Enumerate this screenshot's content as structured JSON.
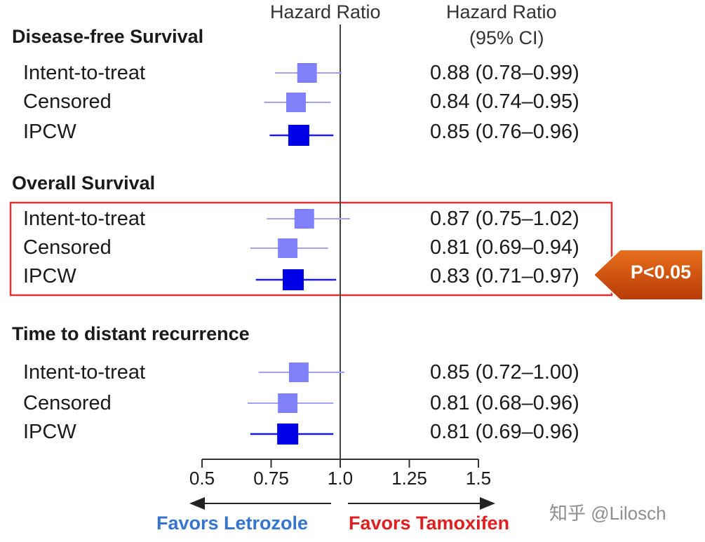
{
  "chart_data": {
    "type": "forest",
    "header": {
      "hr_column": "Hazard Ratio",
      "ci_column": [
        "Hazard Ratio",
        "(95% CI)"
      ]
    },
    "x_axis": {
      "min": 0.5,
      "max": 1.5,
      "ticks": [
        "0.5",
        "0.75",
        "1.0",
        "1.25",
        "1.5"
      ],
      "reference_line": 1.0
    },
    "groups": [
      {
        "title": "Disease-free Survival",
        "rows": [
          {
            "label": "Intent-to-treat",
            "hr": 0.88,
            "low": 0.78,
            "high": 0.99,
            "text": "0.88 (0.78–0.99)"
          },
          {
            "label": "Censored",
            "hr": 0.84,
            "low": 0.74,
            "high": 0.95,
            "text": "0.84 (0.74–0.95)"
          },
          {
            "label": "IPCW",
            "hr": 0.85,
            "low": 0.76,
            "high": 0.96,
            "text": "0.85 (0.76–0.96)"
          }
        ]
      },
      {
        "title": "Overall Survival",
        "rows": [
          {
            "label": "Intent-to-treat",
            "hr": 0.87,
            "low": 0.75,
            "high": 1.02,
            "text": "0.87 (0.75–1.02)"
          },
          {
            "label": "Censored",
            "hr": 0.81,
            "low": 0.69,
            "high": 0.94,
            "text": "0.81 (0.69–0.94)"
          },
          {
            "label": "IPCW",
            "hr": 0.83,
            "low": 0.71,
            "high": 0.97,
            "text": "0.83 (0.71–0.97)"
          }
        ]
      },
      {
        "title": "Time to distant recurrence",
        "rows": [
          {
            "label": "Intent-to-treat",
            "hr": 0.85,
            "low": 0.72,
            "high": 1.0,
            "text": "0.85 (0.72–1.00)"
          },
          {
            "label": "Censored",
            "hr": 0.81,
            "low": 0.68,
            "high": 0.96,
            "text": "0.81 (0.68–0.96)"
          },
          {
            "label": "IPCW",
            "hr": 0.81,
            "low": 0.69,
            "high": 0.96,
            "text": "0.81 (0.69–0.96)"
          }
        ]
      }
    ],
    "favors_left": "Favors Letrozole",
    "favors_right": "Favors Tamoxifen",
    "callout": "P<0.05",
    "colors": {
      "light_marker": "#8080f8",
      "dark_marker": "#0000e6",
      "highlight_box": "#e03030",
      "favors_left": "#3575d0",
      "favors_right": "#e02020",
      "callout_fill": "#d94a0e"
    }
  },
  "watermark": "知乎 @Lilosch"
}
